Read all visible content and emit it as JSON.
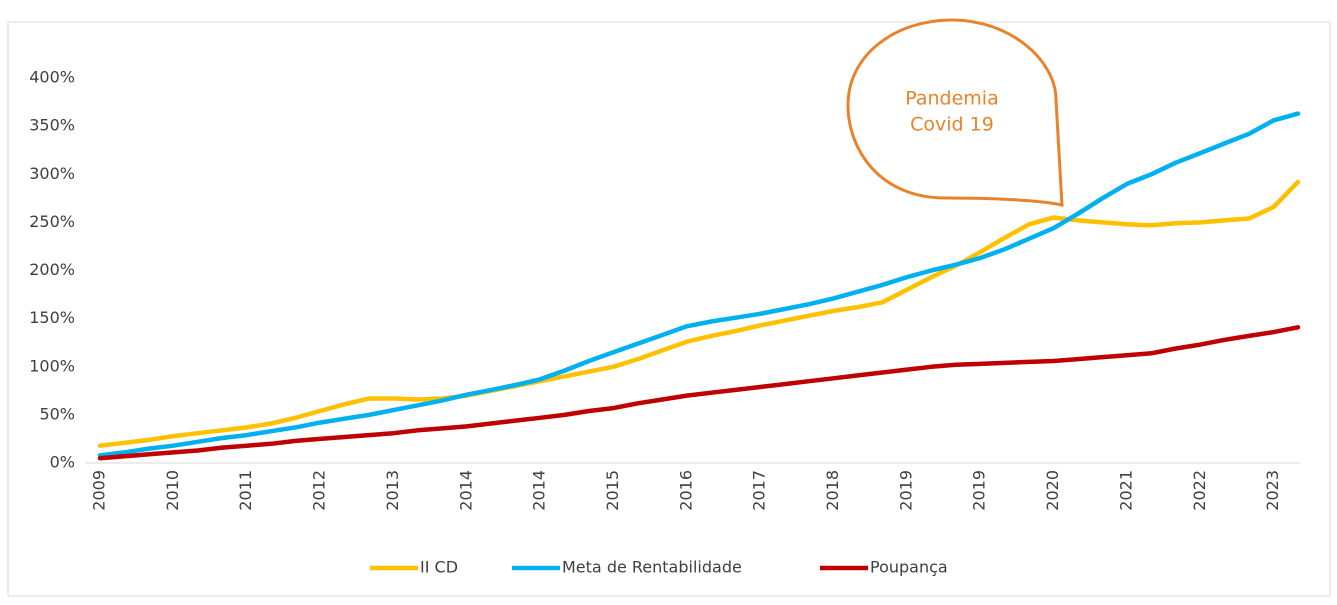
{
  "chart_data": {
    "type": "line",
    "categories": [
      "2009",
      null,
      null,
      "2010",
      null,
      null,
      "2011",
      null,
      null,
      "2012",
      null,
      null,
      "2013",
      null,
      null,
      "2014",
      null,
      null,
      "2014",
      null,
      null,
      "2015",
      null,
      null,
      "2016",
      null,
      null,
      "2017",
      null,
      null,
      "2018",
      null,
      null,
      "2019",
      null,
      null,
      "2019",
      null,
      null,
      "2020",
      null,
      null,
      "2021",
      null,
      null,
      "2022",
      null,
      null,
      "2023",
      null
    ],
    "series": [
      {
        "name": "II CD",
        "color": "#ffc000",
        "values": [
          18,
          21,
          24,
          28,
          31,
          34,
          37,
          41,
          47,
          54,
          61,
          67,
          67,
          66,
          67,
          70,
          75,
          80,
          85,
          90,
          95,
          100,
          108,
          117,
          126,
          132,
          137,
          143,
          148,
          153,
          158,
          162,
          167,
          180,
          193,
          205,
          219,
          234,
          248,
          255,
          252,
          250,
          248,
          247,
          249,
          250,
          252,
          254,
          266,
          292
        ]
      },
      {
        "name": "Meta de Rentabilidade",
        "color": "#00b0f0",
        "values": [
          8,
          11,
          15,
          18,
          22,
          26,
          29,
          33,
          37,
          42,
          46,
          50,
          55,
          60,
          65,
          71,
          76,
          81,
          87,
          96,
          106,
          115,
          124,
          133,
          142,
          147,
          151,
          155,
          160,
          165,
          171,
          178,
          185,
          193,
          200,
          206,
          213,
          222,
          233,
          244,
          259,
          275,
          290,
          300,
          312,
          322,
          332,
          342,
          356,
          363
        ]
      },
      {
        "name": "Poupança",
        "color": "#c00000",
        "values": [
          5,
          7,
          9,
          11,
          13,
          16,
          18,
          20,
          23,
          25,
          27,
          29,
          31,
          34,
          36,
          38,
          41,
          44,
          47,
          50,
          54,
          57,
          62,
          66,
          70,
          73,
          76,
          79,
          82,
          85,
          88,
          91,
          94,
          97,
          100,
          102,
          103,
          104,
          105,
          106,
          108,
          110,
          112,
          114,
          119,
          123,
          128,
          132,
          136,
          141
        ]
      }
    ],
    "ylim": [
      0,
      400
    ],
    "yticks": [
      {
        "value": 0,
        "label": "0%"
      },
      {
        "value": 50,
        "label": "50%"
      },
      {
        "value": 100,
        "label": "100%"
      },
      {
        "value": 150,
        "label": "150%"
      },
      {
        "value": 200,
        "label": "200%"
      },
      {
        "value": 250,
        "label": "250%"
      },
      {
        "value": 300,
        "label": "300%"
      },
      {
        "value": 350,
        "label": "350%"
      },
      {
        "value": 400,
        "label": "400%"
      }
    ],
    "grid": false,
    "legend": "bottom",
    "annotation": [
      "Pandemia",
      "Covid 19"
    ]
  }
}
